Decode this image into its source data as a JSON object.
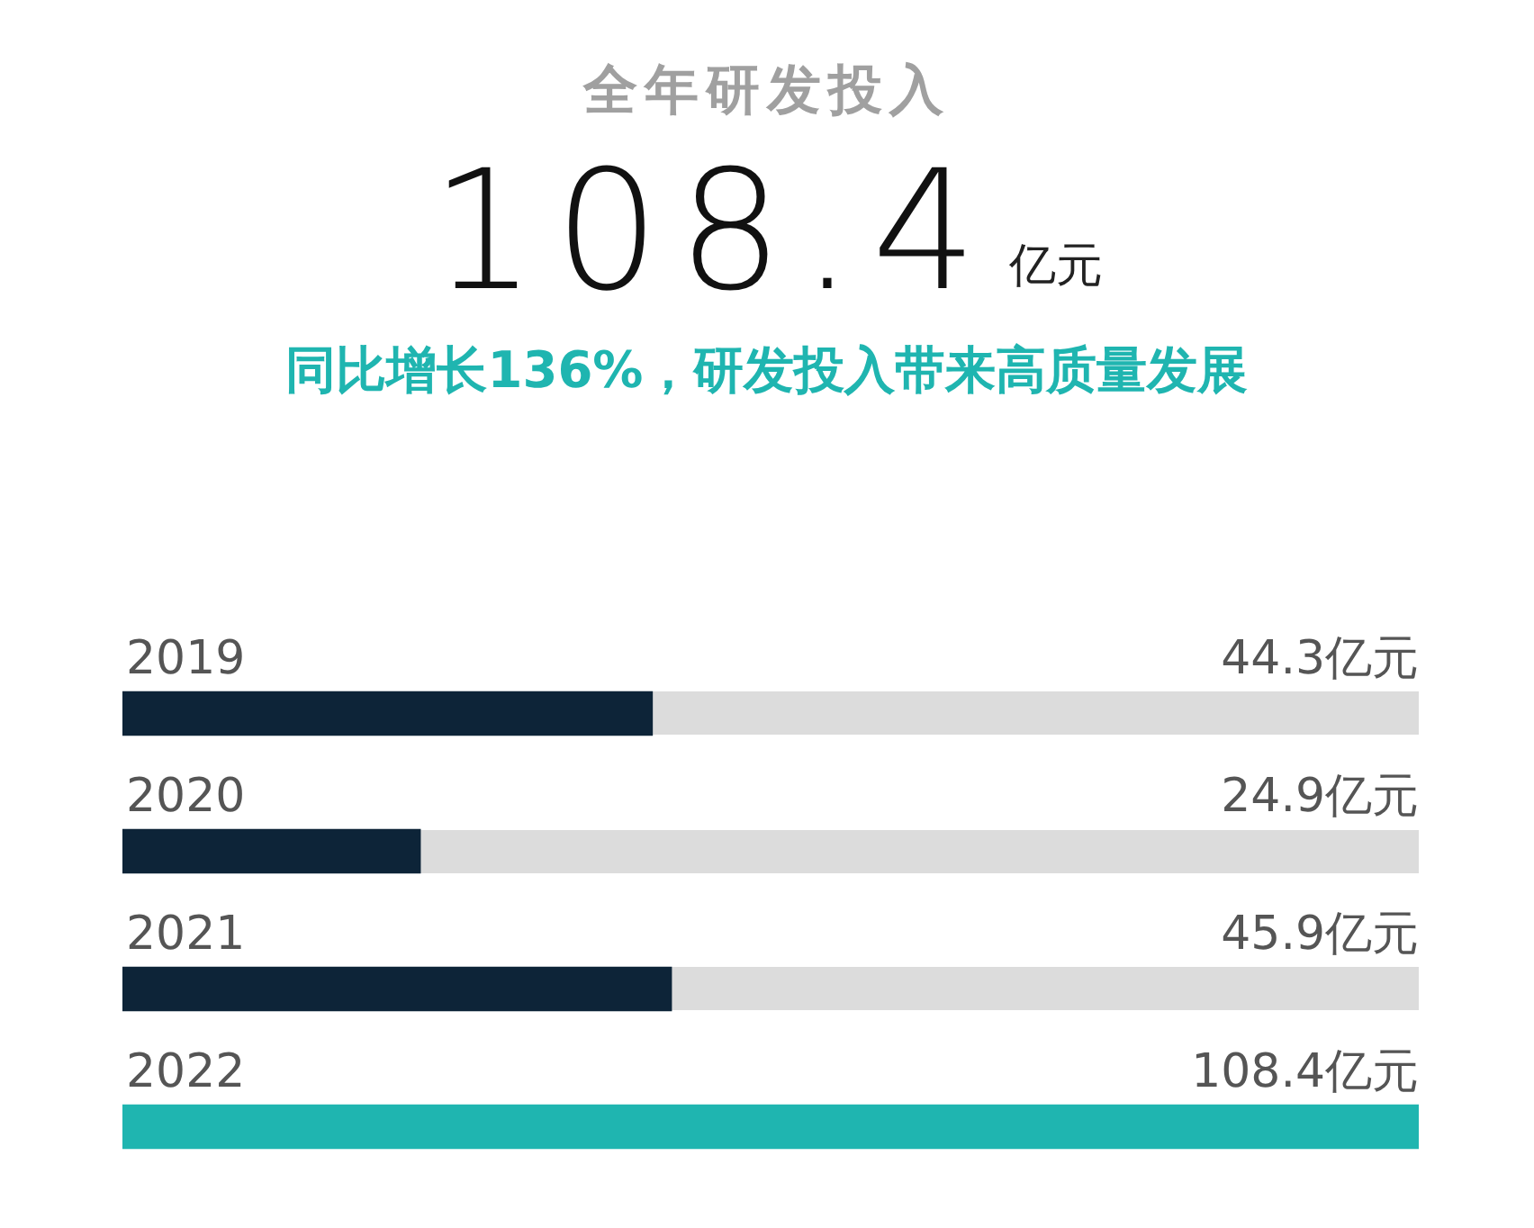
{
  "chart_data": {
    "type": "bar",
    "orientation": "horizontal",
    "title": "全年研发投入",
    "subtitle": "同比增长136%，研发投入带来高质量发展",
    "annotations": [
      "108.4",
      "亿元"
    ],
    "categories": [
      "2019",
      "2020",
      "2021",
      "2022"
    ],
    "values": [
      44.3,
      24.9,
      45.9,
      108.4
    ],
    "colors": [
      "#0d2438",
      "#0d2438",
      "#0d2438",
      "#1fb5b0"
    ],
    "value_labels": [
      "44.3亿元",
      "24.9亿元",
      "45.9亿元",
      "108.4亿元"
    ],
    "legend": false
  }
}
